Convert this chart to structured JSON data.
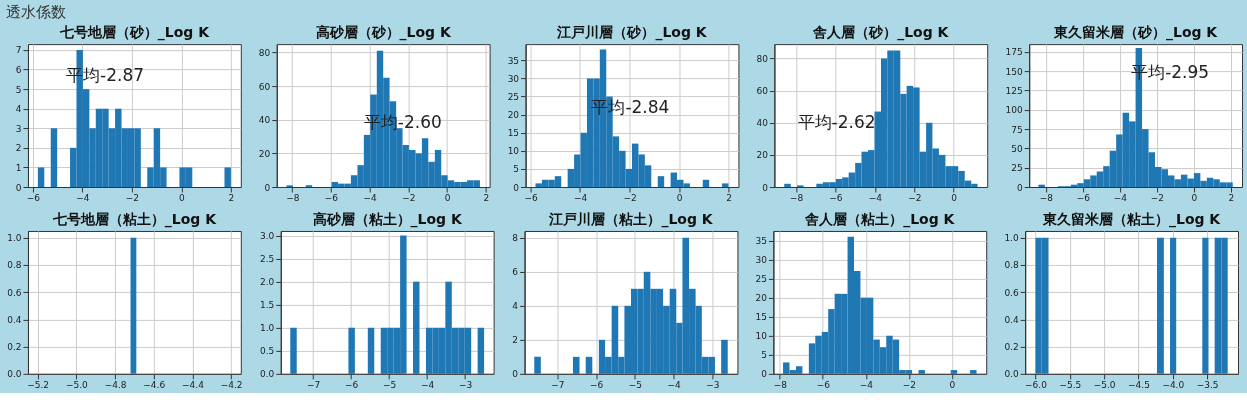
{
  "chart_data": [
    {
      "type": "other",
      "title": "透水係数"
    },
    {
      "type": "histogram",
      "title": "七号地層（砂）_Log K",
      "color": "#1f77b4",
      "grid": true,
      "annotations": [
        "平均-2.87"
      ],
      "bins": [
        -5.8,
        -5.54,
        -5.28,
        -5.02,
        -4.76,
        -4.5,
        -4.24,
        -3.98,
        -3.72,
        -3.46,
        -3.2,
        -2.94,
        -2.68,
        -2.42,
        -2.16,
        -1.9,
        -1.64,
        -1.38,
        -1.12,
        -0.86,
        -0.6,
        -0.34,
        -0.08,
        0.18,
        0.44,
        0.7,
        0.96,
        1.22,
        1.48,
        1.74,
        2.0
      ],
      "values": [
        1,
        0,
        3,
        0,
        0,
        2,
        7,
        5,
        3,
        4,
        4,
        3,
        4,
        3,
        3,
        3,
        0,
        1,
        3,
        1,
        0,
        0,
        1,
        1,
        0,
        0,
        0,
        0,
        0,
        1
      ],
      "xlim": [
        -6.2,
        2.4
      ],
      "xticks": [
        -6,
        -4,
        -2,
        0,
        2
      ],
      "ylim": [
        0,
        7.3
      ],
      "yticks": [
        0,
        1,
        2,
        3,
        4,
        5,
        6,
        7
      ]
    },
    {
      "type": "histogram",
      "title": "高砂層（砂）_Log K",
      "color": "#1f77b4",
      "grid": true,
      "annotations": [
        "平均-2.60"
      ],
      "bins": [
        -8.3,
        -7.97,
        -7.63,
        -7.3,
        -6.97,
        -6.63,
        -6.3,
        -5.97,
        -5.63,
        -5.3,
        -4.97,
        -4.63,
        -4.3,
        -3.97,
        -3.63,
        -3.3,
        -2.97,
        -2.63,
        -2.3,
        -1.97,
        -1.63,
        -1.3,
        -0.97,
        -0.63,
        -0.3,
        0.03,
        0.37,
        0.7,
        1.03,
        1.37,
        1.7
      ],
      "values": [
        1,
        0,
        0,
        1,
        0,
        0,
        0,
        3,
        2,
        2,
        7,
        13,
        31,
        55,
        81,
        65,
        51,
        35,
        25,
        22,
        20,
        29,
        15,
        22,
        7,
        4,
        3,
        3,
        4,
        4
      ],
      "xlim": [
        -8.8,
        2.2
      ],
      "xticks": [
        -8,
        -6,
        -4,
        -2,
        0,
        2
      ],
      "ylim": [
        0,
        85
      ],
      "yticks": [
        0,
        20,
        40,
        60,
        80
      ]
    },
    {
      "type": "histogram",
      "title": "江戸川層（砂）_Log K",
      "color": "#1f77b4",
      "grid": true,
      "annotations": [
        "平均-2.84"
      ],
      "bins": [
        -5.8,
        -5.54,
        -5.28,
        -5.02,
        -4.76,
        -4.5,
        -4.24,
        -3.98,
        -3.72,
        -3.46,
        -3.2,
        -2.94,
        -2.68,
        -2.42,
        -2.16,
        -1.9,
        -1.64,
        -1.38,
        -1.12,
        -0.86,
        -0.6,
        -0.34,
        -0.08,
        0.18,
        0.44,
        0.7,
        0.96,
        1.22,
        1.48,
        1.74,
        2.0
      ],
      "values": [
        1,
        2,
        2,
        3,
        0,
        5,
        9,
        15,
        30,
        30,
        38,
        25,
        14,
        10,
        5,
        12,
        9,
        6,
        0,
        3,
        0,
        4,
        2,
        1,
        0,
        0,
        2,
        0,
        0,
        1
      ],
      "xlim": [
        -6.2,
        2.4
      ],
      "xticks": [
        -6,
        -4,
        -2,
        0,
        2
      ],
      "ylim": [
        0,
        39.5
      ],
      "yticks": [
        0,
        5,
        10,
        15,
        20,
        25,
        30,
        35
      ]
    },
    {
      "type": "histogram",
      "title": "舎人層（砂）_Log K",
      "color": "#1f77b4",
      "grid": true,
      "annotations": [
        "平均-2.62"
      ],
      "bins": [
        -8.6,
        -8.27,
        -7.95,
        -7.62,
        -7.29,
        -6.97,
        -6.64,
        -6.31,
        -5.98,
        -5.66,
        -5.33,
        -5.0,
        -4.68,
        -4.35,
        -4.02,
        -3.69,
        -3.37,
        -3.04,
        -2.71,
        -2.39,
        -2.06,
        -1.73,
        -1.4,
        -1.08,
        -0.75,
        -0.42,
        -0.09,
        0.23,
        0.56,
        0.89,
        1.21
      ],
      "values": [
        2,
        0,
        1,
        0,
        0,
        2,
        3,
        3,
        5,
        6,
        9,
        15,
        22,
        23,
        47,
        80,
        85,
        85,
        58,
        63,
        62,
        22,
        40,
        24,
        20,
        13,
        13,
        10,
        4,
        2
      ],
      "xlim": [
        -9.1,
        1.7
      ],
      "xticks": [
        -8,
        -6,
        -4,
        -2,
        0
      ],
      "ylim": [
        0,
        89
      ],
      "yticks": [
        0,
        20,
        40,
        60,
        80
      ]
    },
    {
      "type": "histogram",
      "title": "東久留米層（砂）_Log K",
      "color": "#1f77b4",
      "grid": true,
      "annotations": [
        "平均-2.95"
      ],
      "bins": [
        -8.4,
        -8.05,
        -7.7,
        -7.35,
        -7.0,
        -6.65,
        -6.3,
        -5.95,
        -5.6,
        -5.25,
        -4.9,
        -4.55,
        -4.2,
        -3.85,
        -3.5,
        -3.15,
        -2.8,
        -2.45,
        -2.1,
        -1.75,
        -1.4,
        -1.05,
        -0.7,
        -0.35,
        0.0,
        0.35,
        0.7,
        1.05,
        1.4,
        1.75,
        2.1
      ],
      "values": [
        3,
        0,
        0,
        1,
        1,
        3,
        5,
        10,
        15,
        20,
        27,
        47,
        68,
        96,
        85,
        180,
        75,
        45,
        26,
        23,
        15,
        10,
        16,
        11,
        18,
        8,
        12,
        10,
        6,
        6
      ],
      "xlim": [
        -8.9,
        2.6
      ],
      "xticks": [
        -8,
        -6,
        -4,
        -2,
        0,
        2
      ],
      "ylim": [
        0,
        185
      ],
      "yticks": [
        0,
        25,
        50,
        75,
        100,
        125,
        150,
        175
      ]
    },
    {
      "type": "histogram",
      "title": "七号地層（粘土）_Log K",
      "color": "#1f77b4",
      "grid": true,
      "bins": [
        -4.72,
        -4.69
      ],
      "values": [
        1
      ],
      "xlim": [
        -5.25,
        -4.15
      ],
      "xticks": [
        {
          "value": -5.2,
          "label": "−5.2"
        },
        {
          "value": -5.0,
          "label": "−5.0"
        },
        {
          "value": -4.8,
          "label": "−4.8"
        },
        {
          "value": -4.6,
          "label": "−4.6"
        },
        {
          "value": -4.4,
          "label": "−4.4"
        },
        {
          "value": -4.2,
          "label": "−4.2"
        }
      ],
      "ylim": [
        0,
        1.05
      ],
      "yticks": [
        {
          "value": 0,
          "label": "0.0"
        },
        {
          "value": 0.2,
          "label": "0.2"
        },
        {
          "value": 0.4,
          "label": "0.4"
        },
        {
          "value": 0.6,
          "label": "0.6"
        },
        {
          "value": 0.8,
          "label": "0.8"
        },
        {
          "value": 1,
          "label": "1.0"
        }
      ]
    },
    {
      "type": "histogram",
      "title": "高砂層（粘土）_Log K",
      "color": "#1f77b4",
      "grid": true,
      "bins": [
        -7.6,
        -7.43,
        -7.26,
        -7.09,
        -6.92,
        -6.75,
        -6.58,
        -6.41,
        -6.24,
        -6.07,
        -5.9,
        -5.73,
        -5.56,
        -5.39,
        -5.22,
        -5.05,
        -4.88,
        -4.71,
        -4.54,
        -4.37,
        -4.2,
        -4.03,
        -3.86,
        -3.69,
        -3.52,
        -3.35,
        -3.18,
        -3.01,
        -2.84,
        -2.67,
        -2.5
      ],
      "values": [
        1,
        0,
        0,
        0,
        0,
        0,
        0,
        0,
        0,
        1,
        0,
        0,
        1,
        0,
        1,
        1,
        1,
        3,
        0,
        2,
        0,
        1,
        1,
        1,
        2,
        1,
        1,
        1,
        0,
        1
      ],
      "xlim": [
        -7.85,
        -2.25
      ],
      "xticks": [
        -7,
        -6,
        -5,
        -4,
        -3
      ],
      "ylim": [
        0,
        3.1
      ],
      "yticks": [
        {
          "value": 0,
          "label": "0.0"
        },
        {
          "value": 0.5,
          "label": "0.5"
        },
        {
          "value": 1,
          "label": "1.0"
        },
        {
          "value": 1.5,
          "label": "1.5"
        },
        {
          "value": 2,
          "label": "2.0"
        },
        {
          "value": 2.5,
          "label": "2.5"
        },
        {
          "value": 3,
          "label": "3.0"
        }
      ]
    },
    {
      "type": "histogram",
      "title": "江戸川層（粘土）_Log K",
      "color": "#1f77b4",
      "grid": true,
      "bins": [
        -7.6,
        -7.43,
        -7.27,
        -7.1,
        -6.93,
        -6.77,
        -6.6,
        -6.43,
        -6.27,
        -6.1,
        -5.93,
        -5.77,
        -5.6,
        -5.43,
        -5.27,
        -5.1,
        -4.93,
        -4.77,
        -4.6,
        -4.43,
        -4.27,
        -4.1,
        -3.93,
        -3.77,
        -3.6,
        -3.43,
        -3.27,
        -3.1,
        -2.93,
        -2.77,
        -2.6
      ],
      "values": [
        1,
        0,
        0,
        0,
        0,
        0,
        1,
        0,
        1,
        0,
        2,
        1,
        4,
        1,
        4,
        5,
        5,
        6,
        5,
        5,
        4,
        5,
        3,
        8,
        5,
        4,
        1,
        1,
        0,
        2
      ],
      "xlim": [
        -7.85,
        -2.35
      ],
      "xticks": [
        -7,
        -6,
        -5,
        -4,
        -3
      ],
      "ylim": [
        0,
        8.4
      ],
      "yticks": [
        0,
        2,
        4,
        6,
        8
      ]
    },
    {
      "type": "histogram",
      "title": "舎人層（粘土）_Log K",
      "color": "#1f77b4",
      "grid": true,
      "bins": [
        -7.85,
        -7.55,
        -7.25,
        -6.95,
        -6.65,
        -6.35,
        -6.05,
        -5.75,
        -5.45,
        -5.15,
        -4.85,
        -4.55,
        -4.25,
        -3.95,
        -3.65,
        -3.35,
        -3.05,
        -2.75,
        -2.45,
        -2.15,
        -1.85,
        -1.55,
        -1.25,
        -0.95,
        -0.65,
        -0.35,
        -0.05,
        0.25,
        0.55,
        0.85,
        1.15
      ],
      "values": [
        3,
        1,
        2,
        0,
        8,
        10,
        11,
        17,
        21,
        21,
        36,
        27,
        20,
        20,
        9,
        7,
        10,
        9,
        1,
        1,
        0,
        1,
        0,
        0,
        0,
        0,
        1,
        0,
        0,
        1
      ],
      "xlim": [
        -8.3,
        1.6
      ],
      "xticks": [
        -8,
        -6,
        -4,
        -2,
        0
      ],
      "ylim": [
        0,
        37.5
      ],
      "yticks": [
        0,
        5,
        10,
        15,
        20,
        25,
        30,
        35
      ]
    },
    {
      "type": "histogram",
      "title": "東久留米層（粘土）_Log K",
      "color": "#1f77b4",
      "grid": true,
      "bins": [
        -6.0,
        -5.91,
        -5.81,
        -4.23,
        -4.13,
        -4.04,
        -3.95,
        -3.57,
        -3.48,
        -3.39,
        -3.29,
        -3.2
      ],
      "values": [
        1,
        1,
        0,
        1,
        0,
        1,
        0,
        1,
        0,
        1,
        1
      ],
      "xlim": [
        -6.15,
        -3.05
      ],
      "xticks": [
        {
          "value": -6.0,
          "label": "−6.0"
        },
        {
          "value": -5.5,
          "label": "−5.5"
        },
        {
          "value": -5.0,
          "label": "−5.0"
        },
        {
          "value": -4.5,
          "label": "−4.5"
        },
        {
          "value": -4.0,
          "label": "−4.0"
        },
        {
          "value": -3.5,
          "label": "−3.5"
        }
      ],
      "ylim": [
        0,
        1.05
      ],
      "yticks": [
        {
          "value": 0,
          "label": "0.0"
        },
        {
          "value": 0.2,
          "label": "0.2"
        },
        {
          "value": 0.4,
          "label": "0.4"
        },
        {
          "value": 0.6,
          "label": "0.6"
        },
        {
          "value": 0.8,
          "label": "0.8"
        },
        {
          "value": 1,
          "label": "1.0"
        }
      ]
    }
  ]
}
